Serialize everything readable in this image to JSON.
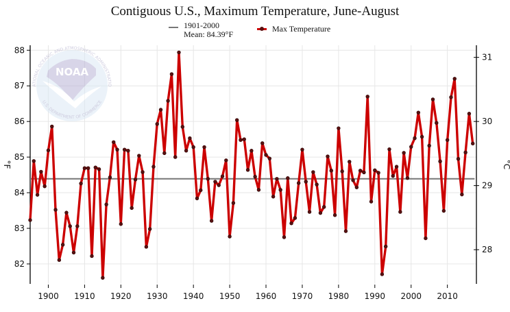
{
  "chart_data": {
    "type": "line",
    "title": "Contiguous U.S., Maximum Temperature, June-August",
    "xlabel": "",
    "ylabel": "°F",
    "ylabel_right": "°C",
    "xlim": [
      1895,
      2018
    ],
    "ylim": [
      81.44,
      88.14
    ],
    "ylim_right_celsius": [
      27.47,
      31.19
    ],
    "grid": true,
    "legend_placement": "top-center",
    "x_ticks": [
      1900,
      1910,
      1920,
      1930,
      1940,
      1950,
      1960,
      1970,
      1980,
      1990,
      2000,
      2010
    ],
    "x_tick_labels": [
      "1900",
      "1910",
      "1920",
      "1930",
      "1940",
      "1950",
      "1960",
      "1970",
      "1980",
      "1990",
      "2000",
      "2010"
    ],
    "y_ticks": [
      82,
      83,
      84,
      85,
      86,
      87,
      88
    ],
    "y_tick_labels": [
      "82",
      "83",
      "84",
      "85",
      "86",
      "87",
      "88"
    ],
    "y_ticks_right": [
      28,
      29,
      30,
      31
    ],
    "y_tick_labels_right": [
      "28",
      "29",
      "30",
      "31"
    ],
    "mean": {
      "label_line1": "1901-2000",
      "label_line2": "Mean: 84.39°F",
      "value": 84.39,
      "color": "#777777"
    },
    "series": [
      {
        "name": "Max Temperature",
        "color": "#cc0000",
        "marker_color": "#5a1010",
        "x": [
          1895,
          1896,
          1897,
          1898,
          1899,
          1900,
          1901,
          1902,
          1903,
          1904,
          1905,
          1906,
          1907,
          1908,
          1909,
          1910,
          1911,
          1912,
          1913,
          1914,
          1915,
          1916,
          1917,
          1918,
          1919,
          1920,
          1921,
          1922,
          1923,
          1924,
          1925,
          1926,
          1927,
          1928,
          1929,
          1930,
          1931,
          1932,
          1933,
          1934,
          1935,
          1936,
          1937,
          1938,
          1939,
          1940,
          1941,
          1942,
          1943,
          1944,
          1945,
          1946,
          1947,
          1948,
          1949,
          1950,
          1951,
          1952,
          1953,
          1954,
          1955,
          1956,
          1957,
          1958,
          1959,
          1960,
          1961,
          1962,
          1963,
          1964,
          1965,
          1966,
          1967,
          1968,
          1969,
          1970,
          1971,
          1972,
          1973,
          1974,
          1975,
          1976,
          1977,
          1978,
          1979,
          1980,
          1981,
          1982,
          1983,
          1984,
          1985,
          1986,
          1987,
          1988,
          1989,
          1990,
          1991,
          1992,
          1993,
          1994,
          1995,
          1996,
          1997,
          1998,
          1999,
          2000,
          2001,
          2002,
          2003,
          2004,
          2005,
          2006,
          2007,
          2008,
          2009,
          2010,
          2011,
          2012,
          2013,
          2014,
          2015,
          2016,
          2017
        ],
        "values": [
          83.23,
          84.89,
          83.94,
          84.59,
          84.18,
          85.19,
          85.86,
          83.52,
          82.11,
          82.54,
          83.44,
          83.06,
          82.32,
          83.06,
          84.26,
          84.69,
          84.69,
          82.22,
          84.71,
          84.66,
          81.61,
          83.67,
          84.43,
          85.42,
          85.21,
          83.12,
          85.21,
          85.18,
          83.57,
          84.37,
          85.04,
          84.58,
          82.48,
          82.98,
          84.73,
          85.93,
          86.33,
          85.11,
          86.58,
          87.33,
          85.0,
          87.94,
          85.85,
          85.18,
          85.53,
          85.28,
          83.84,
          84.07,
          85.28,
          84.39,
          83.21,
          84.31,
          84.21,
          84.46,
          84.91,
          82.77,
          83.71,
          86.04,
          85.48,
          85.5,
          84.64,
          85.18,
          84.45,
          84.08,
          85.39,
          85.06,
          84.96,
          83.89,
          84.39,
          84.08,
          82.75,
          84.41,
          83.14,
          83.29,
          84.27,
          85.21,
          84.31,
          83.46,
          84.58,
          84.23,
          83.43,
          83.6,
          85.02,
          84.62,
          83.37,
          85.81,
          84.6,
          82.92,
          84.87,
          84.35,
          84.15,
          84.62,
          84.57,
          86.7,
          83.75,
          84.63,
          84.56,
          81.71,
          82.49,
          85.22,
          84.47,
          84.73,
          83.46,
          85.12,
          84.41,
          85.29,
          85.53,
          86.25,
          85.57,
          82.72,
          85.32,
          86.62,
          85.96,
          84.88,
          83.49,
          85.48,
          86.68,
          87.2,
          84.95,
          83.95,
          85.13,
          86.22,
          85.38
        ]
      }
    ]
  },
  "watermark": {
    "name": "NOAA",
    "ring_text": "NATIONAL OCEANIC AND ATMOSPHERIC ADMINISTRATION",
    "bottom_text": "U.S. DEPARTMENT OF COMMERCE"
  }
}
